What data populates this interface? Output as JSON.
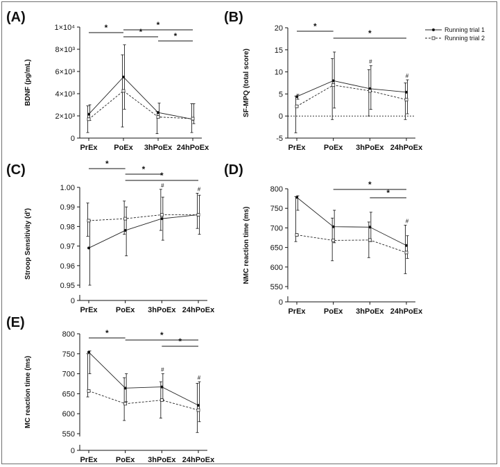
{
  "chart_data": [
    {
      "panel": "(A)",
      "type": "line",
      "categories": [
        "PrEx",
        "PoEx",
        "3hPoEx",
        "24hPoEx"
      ],
      "ylabel": "BDNF (pg/mL)",
      "yticks": [
        0,
        2000,
        4000,
        6000,
        8000,
        10000
      ],
      "ytick_labels": [
        "0",
        "2×10³",
        "4×10³",
        "6×10³",
        "8×10³",
        "1×10⁴"
      ],
      "ylim": [
        0,
        10000
      ],
      "series": [
        {
          "name": "Running trial 1",
          "values": [
            2150,
            5500,
            2300,
            1700
          ],
          "lo": [
            1600,
            2600,
            1900,
            1300
          ],
          "hi": [
            3000,
            8400,
            3150,
            3100
          ]
        },
        {
          "name": "Running trial 2",
          "values": [
            1700,
            4250,
            1900,
            1750
          ],
          "lo": [
            500,
            1000,
            400,
            500
          ],
          "hi": [
            2900,
            7500,
            2400,
            3100
          ]
        }
      ],
      "brackets": [
        {
          "from": 0,
          "to": 1,
          "label": "*"
        },
        {
          "from": 1,
          "to": 3,
          "label": "*"
        },
        {
          "from": 1,
          "to": 2,
          "label": "*"
        },
        {
          "from": 2,
          "to": 3,
          "label": "*"
        }
      ],
      "hashes": []
    },
    {
      "panel": "(B)",
      "type": "line",
      "categories": [
        "PrEx",
        "PoEx",
        "3hPoEx",
        "24hPoEx"
      ],
      "ylabel": "SF-MPQ (total score)",
      "yticks": [
        -5,
        0,
        5,
        10,
        15,
        20
      ],
      "ytick_labels": [
        "-5",
        "0",
        "5",
        "10",
        "15",
        "20"
      ],
      "ylim": [
        -5,
        20
      ],
      "zero_line": true,
      "legend": [
        "Running trial 1",
        "Running trial 2"
      ],
      "series": [
        {
          "name": "Running trial 1",
          "values": [
            4.4,
            8.0,
            6.2,
            5.4
          ],
          "lo": [
            3.8,
            1.8,
            1.5,
            0.5
          ],
          "hi": [
            4.9,
            14.5,
            11.4,
            8.2
          ]
        },
        {
          "name": "Running trial 2",
          "values": [
            2.2,
            7.0,
            5.7,
            3.7
          ],
          "lo": [
            -3.8,
            -0.8,
            0.0,
            -0.8
          ],
          "hi": [
            4.5,
            13.0,
            10.5,
            7.5
          ]
        }
      ],
      "brackets": [
        {
          "from": 0,
          "to": 1,
          "label": "*"
        },
        {
          "from": 1,
          "to": 3,
          "label": "*"
        }
      ],
      "hashes": [
        {
          "index": 2,
          "label": "#"
        },
        {
          "index": 3,
          "label": "#"
        }
      ]
    },
    {
      "panel": "(C)",
      "type": "line",
      "categories": [
        "PrEx",
        "PoEx",
        "3hPoEx",
        "24hPoEx"
      ],
      "ylabel": "Stroop Sensitivity (d')",
      "yticks": [
        0.95,
        0.96,
        0.97,
        0.98,
        0.99,
        1.0
      ],
      "ytick_labels": [
        "0.95",
        "0.96",
        "0.97",
        "0.98",
        "0.99",
        "1.00"
      ],
      "ylim": [
        0.95,
        1.0
      ],
      "axis_break": true,
      "axis_zero_label": "0",
      "series": [
        {
          "name": "Running trial 1",
          "values": [
            0.969,
            0.978,
            0.984,
            0.986
          ],
          "lo": [
            0.95,
            0.965,
            0.973,
            0.976
          ],
          "hi": [
            0.983,
            0.99,
            0.995,
            0.996
          ]
        },
        {
          "name": "Running trial 2",
          "values": [
            0.983,
            0.984,
            0.986,
            0.986
          ],
          "lo": [
            0.975,
            0.976,
            0.978,
            0.979
          ],
          "hi": [
            0.992,
            0.993,
            0.999,
            0.997
          ]
        }
      ],
      "brackets": [
        {
          "from": 0,
          "to": 1,
          "label": "*"
        },
        {
          "from": 1,
          "to": 2,
          "label": "*"
        },
        {
          "from": 1,
          "to": 3,
          "label": "*"
        }
      ],
      "hashes": [
        {
          "index": 2,
          "label": "#"
        },
        {
          "index": 3,
          "label": "#"
        }
      ]
    },
    {
      "panel": "(D)",
      "type": "line",
      "categories": [
        "PrEx",
        "PoEx",
        "3hPoEx",
        "24hPoEx"
      ],
      "ylabel": "NMC reaction time (ms)",
      "yticks": [
        550,
        600,
        650,
        700,
        750,
        800
      ],
      "ytick_labels": [
        "550",
        "600",
        "650",
        "700",
        "750",
        "800"
      ],
      "ylim": [
        550,
        800
      ],
      "axis_break": true,
      "axis_zero_label": "0",
      "series": [
        {
          "name": "Running trial 1",
          "values": [
            778,
            703,
            702,
            655
          ],
          "lo": [
            745,
            662,
            665,
            622
          ],
          "hi": [
            782,
            745,
            740,
            680
          ]
        },
        {
          "name": "Running trial 2",
          "values": [
            682,
            668,
            669,
            637
          ],
          "lo": [
            665,
            616,
            624,
            583
          ],
          "hi": [
            780,
            725,
            715,
            707
          ]
        }
      ],
      "brackets": [
        {
          "from": 1,
          "to": 3,
          "label": "*"
        },
        {
          "from": 2,
          "to": 3,
          "label": "*"
        }
      ],
      "hashes": [
        {
          "index": 3,
          "label": "#"
        }
      ]
    },
    {
      "panel": "(E)",
      "type": "line",
      "categories": [
        "PrEx",
        "PoEx",
        "3hPoEx",
        "24hPoEx"
      ],
      "ylabel": "MC reaction time (ms)",
      "yticks": [
        550,
        600,
        650,
        700,
        750,
        800
      ],
      "ytick_labels": [
        "550",
        "600",
        "650",
        "700",
        "750",
        "800"
      ],
      "ylim": [
        550,
        800
      ],
      "axis_break": true,
      "axis_zero_label": "0",
      "series": [
        {
          "name": "Running trial 1",
          "values": [
            754,
            664,
            667,
            621
          ],
          "lo": [
            700,
            630,
            635,
            580
          ],
          "hi": [
            757,
            700,
            700,
            680
          ]
        },
        {
          "name": "Running trial 2",
          "values": [
            657,
            625,
            634,
            609
          ],
          "lo": [
            642,
            583,
            589,
            553
          ],
          "hi": [
            750,
            690,
            680,
            676
          ]
        }
      ],
      "brackets": [
        {
          "from": 0,
          "to": 1,
          "label": "*"
        },
        {
          "from": 1,
          "to": 3,
          "label": "*"
        },
        {
          "from": 2,
          "to": 3,
          "label": "*"
        }
      ],
      "hashes": [
        {
          "index": 2,
          "label": "#"
        },
        {
          "index": 3,
          "label": "#"
        }
      ]
    }
  ]
}
